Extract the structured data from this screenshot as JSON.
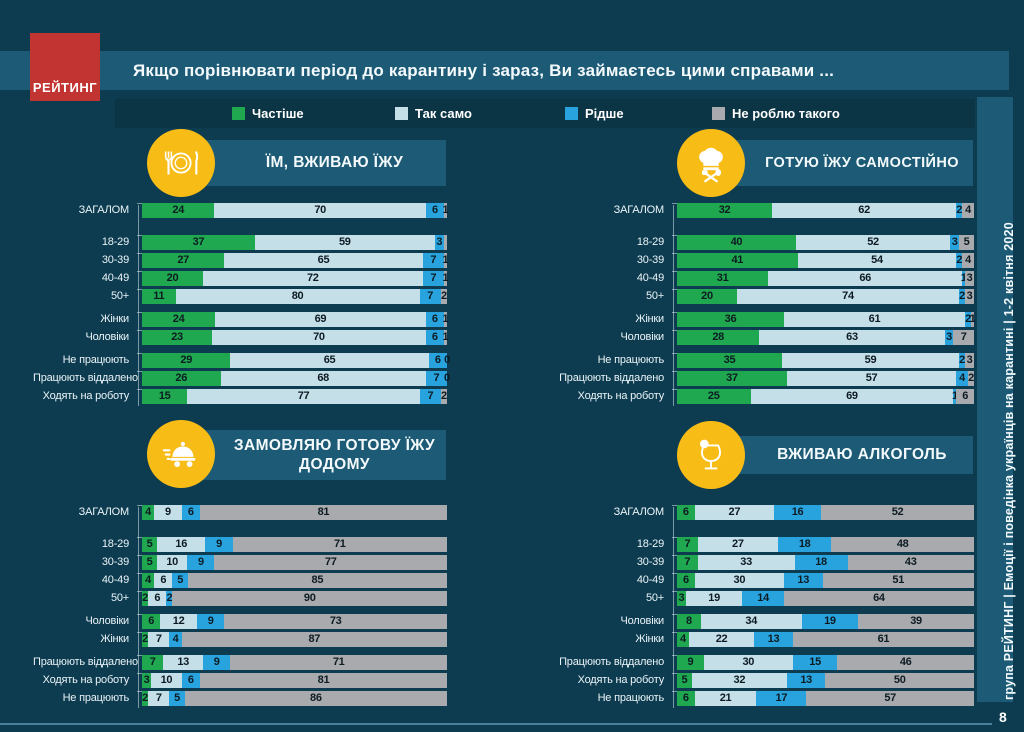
{
  "header": {
    "logo_text": "РЕЙТИНГ",
    "title": "Якщо порівнювати  період до карантину і зараз, Ви займаєтесь цими справами  ..."
  },
  "legend": [
    {
      "key": "more-often",
      "label": "Частіше",
      "color": "#1FA84F"
    },
    {
      "key": "same",
      "label": "Так само",
      "color": "#C5DFE9"
    },
    {
      "key": "less-often",
      "label": "Рідше",
      "color": "#29A3DD"
    },
    {
      "key": "not-doing",
      "label": "Не роблю такого",
      "color": "#A8AAAD"
    }
  ],
  "colors": {
    "background": "#0D3B4F",
    "band": "#1C5A75",
    "legend_band": "#0B3444",
    "logo_red": "#C23431",
    "icon_yellow": "#F7BC16"
  },
  "sidebar": {
    "text": "група РЕЙТИНГ  |  Емоції і поведінка українців на карантині  |  1-2 квітня 2020"
  },
  "footer": {
    "page_number": "8"
  },
  "chart_data": [
    {
      "type": "bar",
      "stacked": true,
      "orientation": "horizontal",
      "unit": "%",
      "xlim": [
        0,
        100
      ],
      "title": "ЇМ, ВЖИВАЮ ЇЖУ",
      "icon": "cutlery-plate-icon",
      "series_names": [
        "Частіше",
        "Так само",
        "Рідше",
        "Не роблю такого"
      ],
      "groups": [
        [
          {
            "label": "ЗАГАЛОМ",
            "values": [
              24,
              70,
              6,
              1
            ]
          }
        ],
        [
          {
            "label": "18-29",
            "values": [
              37,
              59,
              3,
              1
            ],
            "labels": [
              "37",
              "59",
              "3",
              ""
            ]
          },
          {
            "label": "30-39",
            "values": [
              27,
              65,
              7,
              1
            ]
          },
          {
            "label": "40-49",
            "values": [
              20,
              72,
              7,
              1
            ]
          },
          {
            "label": "50+",
            "values": [
              11,
              80,
              7,
              2
            ]
          }
        ],
        [
          {
            "label": "Жінки",
            "values": [
              24,
              69,
              6,
              1
            ]
          },
          {
            "label": "Чоловіки",
            "values": [
              23,
              70,
              6,
              1
            ]
          }
        ],
        [
          {
            "label": "Не працюють",
            "values": [
              29,
              65,
              6,
              0
            ]
          },
          {
            "label": "Працюють віддалено",
            "values": [
              26,
              68,
              7,
              0
            ]
          },
          {
            "label": "Ходять на роботу",
            "values": [
              15,
              77,
              7,
              2
            ]
          }
        ]
      ]
    },
    {
      "type": "bar",
      "stacked": true,
      "orientation": "horizontal",
      "unit": "%",
      "xlim": [
        0,
        100
      ],
      "title": "ГОТУЮ ЇЖУ САМОСТІЙНО",
      "icon": "chef-hat-icon",
      "series_names": [
        "Частіше",
        "Так само",
        "Рідше",
        "Не роблю такого"
      ],
      "groups": [
        [
          {
            "label": "ЗАГАЛОМ",
            "values": [
              32,
              62,
              2,
              4
            ]
          }
        ],
        [
          {
            "label": "18-29",
            "values": [
              40,
              52,
              3,
              5
            ]
          },
          {
            "label": "30-39",
            "values": [
              41,
              54,
              2,
              4
            ]
          },
          {
            "label": "40-49",
            "values": [
              31,
              66,
              1,
              3
            ]
          },
          {
            "label": "50+",
            "values": [
              20,
              74,
              2,
              3
            ]
          }
        ],
        [
          {
            "label": "Жінки",
            "values": [
              36,
              61,
              2,
              1
            ]
          },
          {
            "label": "Чоловіки",
            "values": [
              28,
              63,
              3,
              7
            ]
          }
        ],
        [
          {
            "label": "Не працюють",
            "values": [
              35,
              59,
              2,
              3
            ]
          },
          {
            "label": "Працюють віддалено",
            "values": [
              37,
              57,
              4,
              2
            ]
          },
          {
            "label": "Ходять на роботу",
            "values": [
              25,
              69,
              1,
              6
            ]
          }
        ]
      ]
    },
    {
      "type": "bar",
      "stacked": true,
      "orientation": "horizontal",
      "unit": "%",
      "xlim": [
        0,
        100
      ],
      "title": "ЗАМОВЛЯЮ ГОТОВУ ЇЖУ ДОДОМУ",
      "icon": "food-delivery-icon",
      "series_names": [
        "Частіше",
        "Так само",
        "Рідше",
        "Не роблю такого"
      ],
      "groups": [
        [
          {
            "label": "ЗАГАЛОМ",
            "values": [
              4,
              9,
              6,
              81
            ]
          }
        ],
        [
          {
            "label": "18-29",
            "values": [
              5,
              16,
              9,
              71
            ]
          },
          {
            "label": "30-39",
            "values": [
              5,
              10,
              9,
              77
            ]
          },
          {
            "label": "40-49",
            "values": [
              4,
              6,
              5,
              85
            ]
          },
          {
            "label": "50+",
            "values": [
              2,
              6,
              2,
              90
            ]
          }
        ],
        [
          {
            "label": "Чоловіки",
            "values": [
              6,
              12,
              9,
              73
            ]
          },
          {
            "label": "Жінки",
            "values": [
              2,
              7,
              4,
              87
            ]
          }
        ],
        [
          {
            "label": "Працюють віддалено",
            "values": [
              7,
              13,
              9,
              71
            ]
          },
          {
            "label": "Ходять на роботу",
            "values": [
              3,
              10,
              6,
              81
            ]
          },
          {
            "label": "Не працюють",
            "values": [
              2,
              7,
              5,
              86
            ]
          }
        ]
      ]
    },
    {
      "type": "bar",
      "stacked": true,
      "orientation": "horizontal",
      "unit": "%",
      "xlim": [
        0,
        100
      ],
      "title": "ВЖИВАЮ АЛКОГОЛЬ",
      "icon": "alcohol-glass-icon",
      "series_names": [
        "Частіше",
        "Так само",
        "Рідше",
        "Не роблю такого"
      ],
      "groups": [
        [
          {
            "label": "ЗАГАЛОМ",
            "values": [
              6,
              27,
              16,
              52
            ]
          }
        ],
        [
          {
            "label": "18-29",
            "values": [
              7,
              27,
              18,
              48
            ]
          },
          {
            "label": "30-39",
            "values": [
              7,
              33,
              18,
              43
            ]
          },
          {
            "label": "40-49",
            "values": [
              6,
              30,
              13,
              51
            ]
          },
          {
            "label": "50+",
            "values": [
              3,
              19,
              14,
              64
            ]
          }
        ],
        [
          {
            "label": "Чоловіки",
            "values": [
              8,
              34,
              19,
              39
            ]
          },
          {
            "label": "Жінки",
            "values": [
              4,
              22,
              13,
              61
            ]
          }
        ],
        [
          {
            "label": "Працюють віддалено",
            "values": [
              9,
              30,
              15,
              46
            ]
          },
          {
            "label": "Ходять на роботу",
            "values": [
              5,
              32,
              13,
              50
            ]
          },
          {
            "label": "Не працюють",
            "values": [
              6,
              21,
              17,
              57
            ]
          }
        ]
      ]
    }
  ]
}
